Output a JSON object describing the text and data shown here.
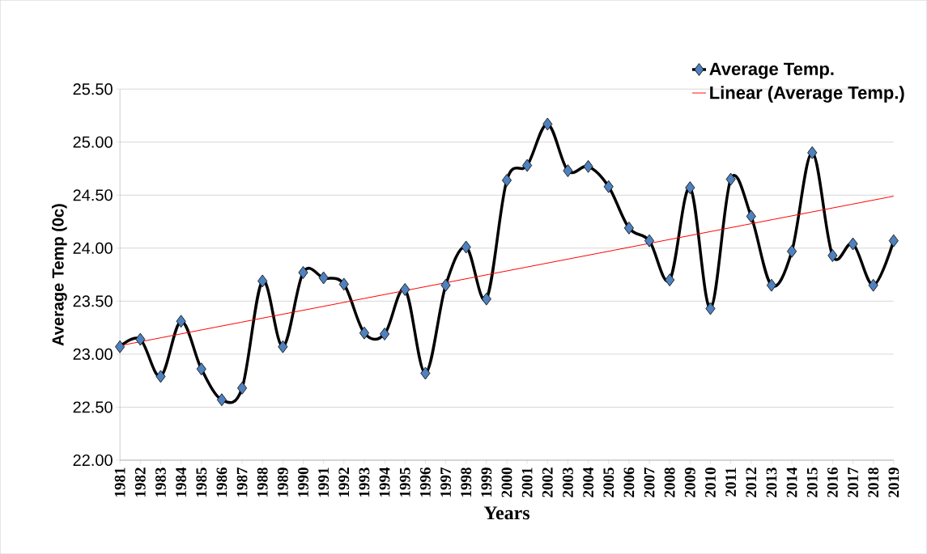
{
  "chart_data": {
    "type": "line",
    "xlabel": "Years",
    "ylabel": "Average Temp (0c)",
    "x": [
      1981,
      1982,
      1983,
      1984,
      1985,
      1986,
      1987,
      1988,
      1989,
      1990,
      1991,
      1992,
      1993,
      1994,
      1995,
      1996,
      1997,
      1998,
      1999,
      2000,
      2001,
      2002,
      2003,
      2004,
      2005,
      2006,
      2007,
      2008,
      2009,
      2010,
      2011,
      2012,
      2013,
      2014,
      2015,
      2016,
      2017,
      2018,
      2019
    ],
    "xlim": [
      1981,
      2019
    ],
    "xticks": [
      1981,
      1982,
      1983,
      1984,
      1985,
      1986,
      1987,
      1988,
      1989,
      1990,
      1991,
      1992,
      1993,
      1994,
      1995,
      1996,
      1997,
      1998,
      1999,
      2000,
      2001,
      2002,
      2003,
      2004,
      2005,
      2006,
      2007,
      2008,
      2009,
      2010,
      2011,
      2012,
      2013,
      2014,
      2015,
      2016,
      2017,
      2018,
      2019
    ],
    "ylim": [
      22,
      25.5
    ],
    "yticks": [
      {
        "value": 22,
        "label": "22.00"
      },
      {
        "value": 22.5,
        "label": "22.50"
      },
      {
        "value": 23,
        "label": "23.00"
      },
      {
        "value": 23.5,
        "label": "23.50"
      },
      {
        "value": 24,
        "label": "24.00"
      },
      {
        "value": 24.5,
        "label": "24.50"
      },
      {
        "value": 25,
        "label": "25.00"
      },
      {
        "value": 25.5,
        "label": "25.50"
      }
    ],
    "grid": "y",
    "legend": "top right",
    "marker": "diamond",
    "line_style": "solid",
    "series": [
      {
        "name": "Average Temp.",
        "color": "#000000",
        "values": [
          23.07,
          23.14,
          22.79,
          23.31,
          22.86,
          22.57,
          22.68,
          23.69,
          23.07,
          23.77,
          23.72,
          23.66,
          23.2,
          23.19,
          23.61,
          22.82,
          23.65,
          24.01,
          23.52,
          24.64,
          24.78,
          25.17,
          24.73,
          24.77,
          24.58,
          24.19,
          24.07,
          23.7,
          24.57,
          23.43,
          24.65,
          24.3,
          23.65,
          23.97,
          24.9,
          23.93,
          24.04,
          23.65,
          24.07
        ]
      },
      {
        "name": "Linear (Average Temp.)",
        "type": "line",
        "color": "#ff0000",
        "marker": "none",
        "x": [
          1981,
          2019
        ],
        "values": [
          23.08,
          24.49
        ]
      }
    ]
  }
}
